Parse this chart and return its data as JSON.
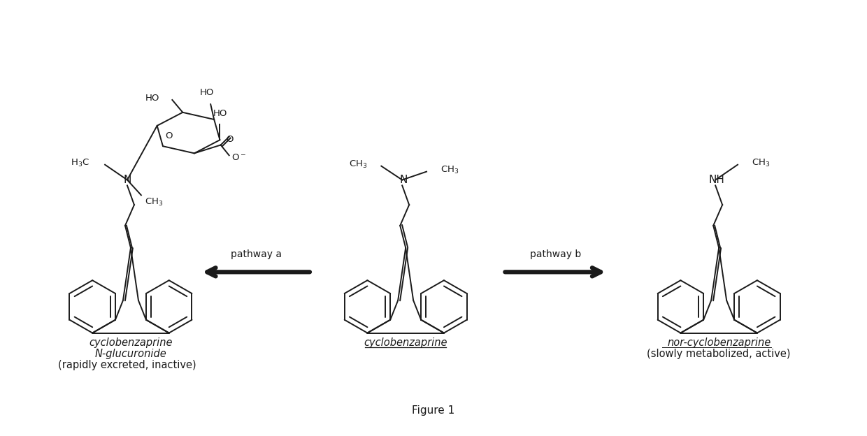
{
  "background_color": "#ffffff",
  "figure_title": "Figure 1",
  "title_fontsize": 11,
  "arrow_color": "#1a1a1a",
  "text_color": "#1a1a1a",
  "bond_color": "#1a1a1a",
  "pathway_a_label": "pathway a",
  "pathway_b_label": "pathway b",
  "left_label1": "cyclobenzaprine",
  "left_label2": "N-glucuronide",
  "left_label3": "(rapidly excreted, inactive)",
  "center_label": "cyclobenzaprine",
  "right_label1": "nor-cyclobenzaprine",
  "right_label2": "(slowly metabolized, active)"
}
